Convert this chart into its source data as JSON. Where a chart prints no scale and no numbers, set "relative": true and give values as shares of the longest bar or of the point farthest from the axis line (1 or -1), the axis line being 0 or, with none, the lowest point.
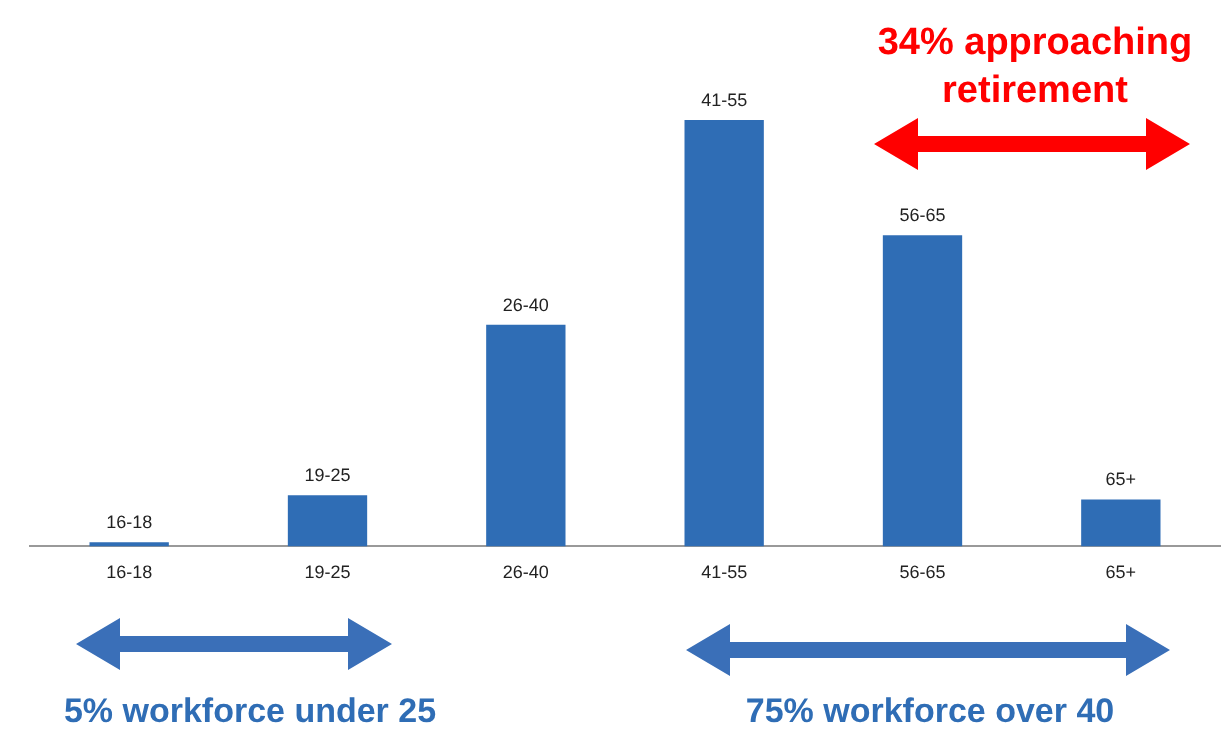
{
  "chart_data": {
    "type": "bar",
    "categories": [
      "16-18",
      "19-25",
      "26-40",
      "41-55",
      "56-65",
      "65+"
    ],
    "values": [
      0.01,
      0.12,
      0.52,
      1,
      0.73,
      0.11
    ],
    "color": "#2f6db5",
    "relative": true,
    "grid": false,
    "legend": false,
    "annotations": [
      "34% approaching retirement",
      "5% workforce under 25",
      "75% workforce over 40"
    ]
  }
}
